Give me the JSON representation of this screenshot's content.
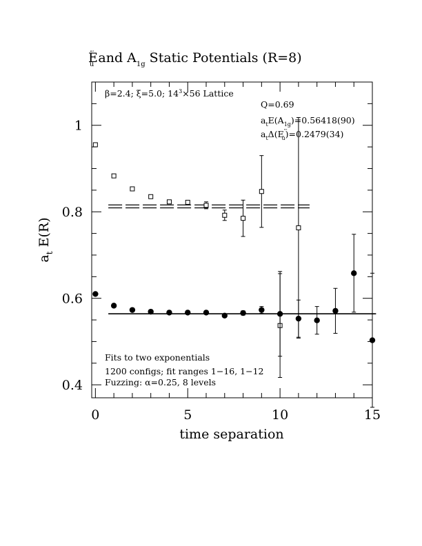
{
  "chart_data": {
    "type": "scatter",
    "title": {
      "main": "E",
      "main_sup": "″′",
      "main_sub": "u",
      "mid": " and A",
      "mid_sub": "1g",
      "tail": " Static Potentials (R=8)"
    },
    "xlabel": "time separation",
    "ylabel": {
      "main": "a",
      "sub": "t",
      "rest": " E(R)"
    },
    "xlim": [
      -0.2,
      15
    ],
    "ylim": [
      0.37,
      1.1
    ],
    "x_ticks": [
      0,
      5,
      10,
      15
    ],
    "y_ticks": [
      0.4,
      0.6,
      0.8,
      1
    ],
    "y_tick_labels": [
      "0.4",
      "0.6",
      "0.8",
      "1"
    ],
    "grid": false,
    "series": [
      {
        "marker": "open-square",
        "points": [
          {
            "x": 0,
            "y": 0.955,
            "err": 0
          },
          {
            "x": 1,
            "y": 0.883,
            "err": 0
          },
          {
            "x": 2,
            "y": 0.853,
            "err": 0
          },
          {
            "x": 3,
            "y": 0.835,
            "err": 0
          },
          {
            "x": 4,
            "y": 0.823,
            "err": 0
          },
          {
            "x": 5,
            "y": 0.822,
            "err": 0
          },
          {
            "x": 6,
            "y": 0.815,
            "err": 0.008
          },
          {
            "x": 7,
            "y": 0.792,
            "err": 0.012
          },
          {
            "x": 8,
            "y": 0.785,
            "err": 0.042
          },
          {
            "x": 9,
            "y": 0.847,
            "err": 0.083
          },
          {
            "x": 10,
            "y": 0.537,
            "err": 0.12
          },
          {
            "x": 11,
            "y": 0.763,
            "err": 0.255
          }
        ],
        "fit": {
          "x_start": 0.7,
          "x_end": 11.6,
          "y": 0.8125,
          "err": 0.0034,
          "style": "double-dashed"
        }
      },
      {
        "marker": "filled-circle",
        "points": [
          {
            "x": 0,
            "y": 0.61,
            "err": 0
          },
          {
            "x": 1,
            "y": 0.583,
            "err": 0
          },
          {
            "x": 2,
            "y": 0.573,
            "err": 0
          },
          {
            "x": 3,
            "y": 0.569,
            "err": 0
          },
          {
            "x": 4,
            "y": 0.567,
            "err": 0
          },
          {
            "x": 5,
            "y": 0.567,
            "err": 0
          },
          {
            "x": 6,
            "y": 0.567,
            "err": 0
          },
          {
            "x": 7,
            "y": 0.56,
            "err": 0.003
          },
          {
            "x": 8,
            "y": 0.566,
            "err": 0.005
          },
          {
            "x": 9,
            "y": 0.573,
            "err": 0.008
          },
          {
            "x": 10,
            "y": 0.564,
            "err": 0.098
          },
          {
            "x": 11,
            "y": 0.553,
            "err": 0.043
          },
          {
            "x": 12,
            "y": 0.549,
            "err": 0.032
          },
          {
            "x": 13,
            "y": 0.571,
            "err": 0.052
          },
          {
            "x": 14,
            "y": 0.658,
            "err": 0.09
          },
          {
            "x": 15,
            "y": 0.503,
            "err": 0.155
          }
        ],
        "fit": {
          "x_start": 0.7,
          "x_end": 15.2,
          "y": 0.5642,
          "err": 0.0009,
          "style": "solid"
        }
      }
    ],
    "annotations": {
      "lattice": {
        "beta": "β=2.4; ξ=5.0; 14",
        "cube": "3",
        "rest": "×56 Lattice"
      },
      "q": "Q=0.69",
      "ea1g": {
        "a": "a",
        "t": "t",
        "mid": "E(A",
        "sub": "1g",
        "val": ")=0.56418(90)"
      },
      "deu": {
        "a": "a",
        "t": "t",
        "mid": "Δ(E",
        "sup": "″′",
        "sub": "u",
        "val": ")=0.2479(34)"
      },
      "fit_note": "Fits to two exponentials",
      "configs": "1200 configs; fit ranges 1−16, 1−12",
      "fuzz": "Fuzzing: α=0.25, 8 levels"
    }
  }
}
